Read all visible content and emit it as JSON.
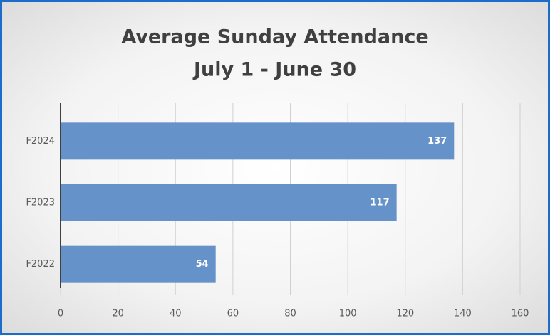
{
  "chart_data": {
    "type": "hbar",
    "title": "Average Sunday Attendance",
    "subtitle": "July 1 - June 30",
    "categories": [
      "F2024",
      "F2023",
      "F2022"
    ],
    "values": [
      137,
      117,
      54
    ],
    "color": "#6592c9",
    "xlim": [
      0,
      160
    ],
    "xticks": [
      0,
      20,
      40,
      60,
      80,
      100,
      120,
      140,
      160
    ],
    "grid": true
  }
}
